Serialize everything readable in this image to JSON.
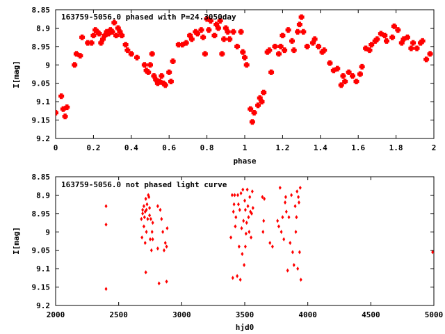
{
  "chart_data": [
    {
      "type": "scatter",
      "title": "163759-5056.0 phased with P=24.3050day",
      "xlabel": "phase",
      "ylabel": "I[mag]",
      "xlim": [
        0,
        2
      ],
      "ylim": [
        9.2,
        8.85
      ],
      "y_inverted": true,
      "xticks": [
        "0",
        "0.2",
        "0.4",
        "0.6",
        "0.8",
        "1",
        "1.2",
        "1.4",
        "1.6",
        "1.8",
        "2"
      ],
      "yticks": [
        "8.85",
        "8.9",
        "8.95",
        "9",
        "9.05",
        "9.1",
        "9.15",
        "9.2"
      ],
      "marker": "filled-cross",
      "color": "#ff0000",
      "grid": false,
      "x": [
        0.0,
        0.03,
        0.04,
        0.05,
        0.06,
        0.1,
        0.11,
        0.13,
        0.14,
        0.17,
        0.19,
        0.2,
        0.21,
        0.22,
        0.23,
        0.24,
        0.25,
        0.26,
        0.27,
        0.28,
        0.29,
        0.3,
        0.31,
        0.32,
        0.33,
        0.34,
        0.35,
        0.37,
        0.38,
        0.4,
        0.43,
        0.47,
        0.48,
        0.49,
        0.5,
        0.51,
        0.52,
        0.53,
        0.54,
        0.55,
        0.56,
        0.57,
        0.58,
        0.6,
        0.61,
        0.62,
        0.65,
        0.67,
        0.69,
        0.71,
        0.72,
        0.74,
        0.75,
        0.77,
        0.78,
        0.79,
        0.8,
        0.81,
        0.82,
        0.84,
        0.85,
        0.86,
        0.87,
        0.88,
        0.89,
        0.9,
        0.91,
        0.92,
        0.94,
        0.96,
        0.98,
        0.99,
        1.0,
        1.01,
        1.03,
        1.04,
        1.05,
        1.07,
        1.08,
        1.09,
        1.1,
        1.12,
        1.13,
        1.14,
        1.16,
        1.18,
        1.19,
        1.2,
        1.21,
        1.23,
        1.25,
        1.26,
        1.28,
        1.29,
        1.3,
        1.31,
        1.33,
        1.36,
        1.37,
        1.39,
        1.41,
        1.42,
        1.45,
        1.47,
        1.49,
        1.51,
        1.52,
        1.53,
        1.55,
        1.57,
        1.59,
        1.61,
        1.62,
        1.64,
        1.66,
        1.67,
        1.69,
        1.7,
        1.72,
        1.74,
        1.75,
        1.78,
        1.79,
        1.81,
        1.83,
        1.84,
        1.86,
        1.88,
        1.89,
        1.91,
        1.93,
        1.94,
        1.96,
        1.98
      ],
      "y": [
        9.13,
        9.085,
        9.12,
        9.14,
        9.115,
        9.0,
        8.97,
        8.975,
        8.925,
        8.94,
        8.94,
        8.92,
        8.905,
        8.91,
        8.915,
        8.94,
        8.93,
        8.92,
        8.91,
        8.915,
        8.905,
        8.91,
        8.885,
        8.92,
        8.9,
        8.91,
        8.92,
        8.945,
        8.96,
        8.97,
        8.98,
        9.0,
        9.015,
        9.02,
        9.0,
        8.97,
        9.03,
        9.04,
        9.05,
        9.045,
        9.03,
        9.05,
        9.055,
        9.02,
        9.045,
        8.99,
        8.945,
        8.945,
        8.94,
        8.92,
        8.93,
        8.91,
        8.915,
        8.905,
        8.925,
        8.97,
        8.875,
        8.905,
        8.88,
        8.92,
        8.89,
        8.9,
        8.88,
        8.97,
        8.93,
        8.9,
        8.91,
        8.93,
        8.91,
        8.95,
        8.91,
        8.965,
        8.98,
        9.0,
        9.12,
        9.155,
        9.13,
        9.11,
        9.09,
        9.1,
        9.075,
        8.965,
        8.96,
        9.02,
        8.95,
        8.97,
        8.95,
        8.92,
        8.96,
        8.905,
        8.935,
        8.96,
        8.91,
        8.89,
        8.87,
        8.91,
        8.95,
        8.94,
        8.93,
        8.95,
        8.965,
        8.96,
        8.995,
        9.015,
        9.01,
        9.055,
        9.03,
        9.045,
        9.02,
        9.03,
        9.045,
        9.025,
        9.005,
        8.955,
        8.96,
        8.945,
        8.935,
        8.93,
        8.915,
        8.92,
        8.935,
        8.925,
        8.895,
        8.905,
        8.94,
        8.93,
        8.925,
        8.955,
        8.94,
        8.955,
        8.94,
        8.935,
        8.985,
        8.97
      ],
      "series_count": 1
    },
    {
      "type": "scatter",
      "title": "163759-5056.0 not phased light curve",
      "xlabel": "hjd0",
      "ylabel": "I[mag]",
      "xlim": [
        2000,
        5000
      ],
      "ylim": [
        9.2,
        8.85
      ],
      "y_inverted": true,
      "xticks": [
        "2000",
        "2500",
        "3000",
        "3500",
        "4000",
        "4500",
        "5000"
      ],
      "yticks": [
        "8.85",
        "8.9",
        "8.95",
        "9",
        "9.05",
        "9.1",
        "9.15",
        "9.2"
      ],
      "marker": "small-diamond",
      "color": "#ff0000",
      "grid": false,
      "x": [
        2400,
        2400,
        2400,
        2680,
        2685,
        2690,
        2690,
        2700,
        2700,
        2705,
        2710,
        2710,
        2715,
        2715,
        2720,
        2720,
        2725,
        2730,
        2735,
        2740,
        2745,
        2745,
        2750,
        2755,
        2760,
        2765,
        2770,
        2770,
        2810,
        2810,
        2820,
        2830,
        2840,
        2850,
        2860,
        2870,
        2880,
        2880,
        2885,
        3390,
        3400,
        3405,
        3410,
        3415,
        3420,
        3425,
        3430,
        3440,
        3445,
        3450,
        3455,
        3460,
        3465,
        3470,
        3475,
        3480,
        3485,
        3490,
        3495,
        3500,
        3505,
        3505,
        3510,
        3515,
        3520,
        3525,
        3530,
        3535,
        3540,
        3545,
        3550,
        3555,
        3560,
        3565,
        3640,
        3645,
        3650,
        3655,
        3700,
        3720,
        3760,
        3770,
        3780,
        3790,
        3800,
        3810,
        3820,
        3825,
        3830,
        3840,
        3850,
        3860,
        3870,
        3880,
        3890,
        3900,
        3905,
        3910,
        3915,
        3920,
        3925,
        3930,
        3935,
        3940,
        3945,
        4990
      ],
      "y": [
        8.93,
        8.98,
        9.155,
        8.965,
        9.015,
        8.94,
        8.95,
        8.985,
        8.93,
        8.96,
        8.945,
        9.03,
        9.11,
        8.91,
        8.94,
        9.0,
        8.925,
        8.965,
        8.9,
        8.905,
        8.935,
        8.955,
        9.02,
        8.965,
        9.05,
        9.0,
        8.975,
        9.02,
        9.045,
        8.93,
        9.14,
        8.94,
        8.965,
        9.0,
        9.05,
        9.03,
        9.135,
        9.04,
        8.99,
        9.015,
        8.9,
        9.125,
        8.945,
        8.925,
        8.9,
        8.985,
        8.96,
        9.12,
        8.9,
        8.925,
        9.04,
        8.94,
        9.13,
        8.895,
        8.99,
        9.06,
        8.885,
        8.97,
        9.09,
        8.915,
        9.04,
        8.94,
        9.005,
        8.975,
        8.885,
        8.93,
        8.96,
        9.0,
        8.905,
        8.945,
        9.015,
        8.95,
        8.89,
        8.935,
        8.905,
        9.0,
        8.97,
        8.91,
        9.03,
        9.04,
        8.97,
        8.985,
        8.88,
        9.0,
        8.96,
        9.02,
        8.92,
        8.905,
        8.945,
        9.105,
        8.96,
        9.03,
        8.9,
        9.055,
        9.09,
        8.93,
        9.0,
        8.96,
        8.89,
        9.1,
        8.905,
        8.92,
        9.055,
        8.88,
        9.13,
        9.055
      ],
      "series_count": 1
    }
  ]
}
